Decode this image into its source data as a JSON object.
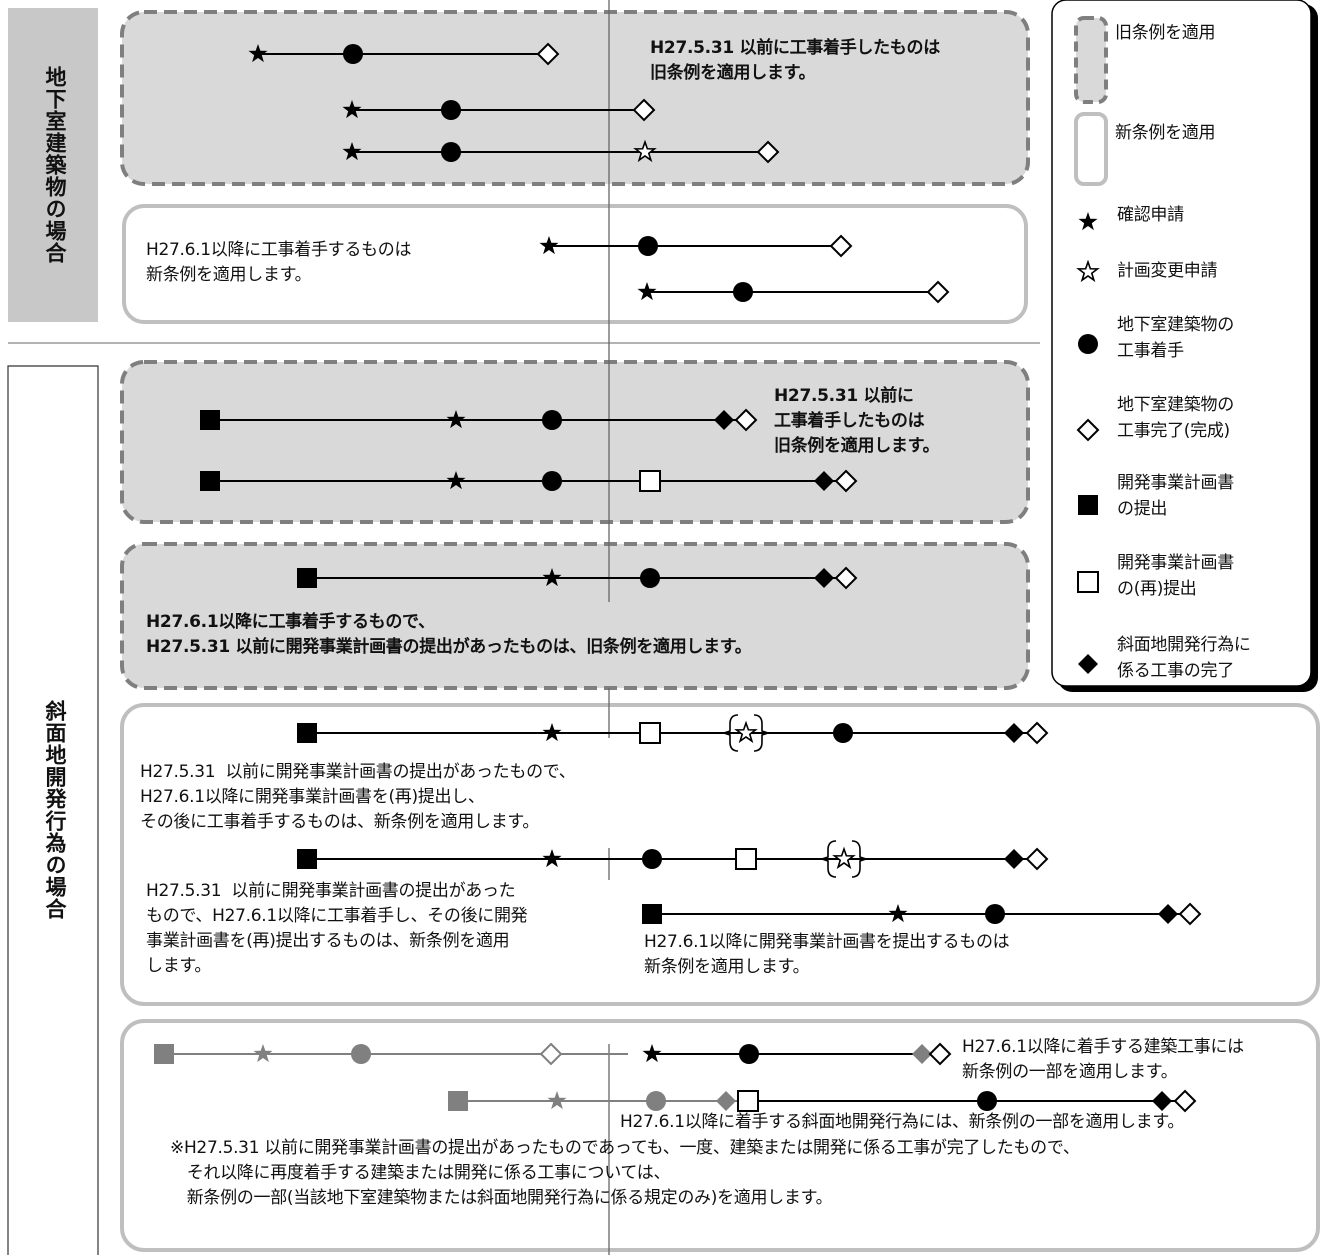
{
  "sections": {
    "underground": "地下室建築物の場合",
    "slope": "斜面地開発行為の場合"
  },
  "texts": {
    "u1": "H27.5.31 以前に工事着手したものは\n旧条例を適用します。",
    "u2": "H27.6.1以降に工事着手するものは\n新条例を適用します。",
    "s1": "H27.5.31 以前に\n工事着手したものは\n旧条例を適用します。",
    "s2": "H27.6.1以降に工事着手するもので、\nH27.5.31 以前に開発事業計画書の提出があったものは、旧条例を適用します。",
    "s3": "H27.5.31  以前に開発事業計画書の提出があったもので、\nH27.6.1以降に開発事業計画書を(再)提出し、\nその後に工事着手するものは、新条例を適用します。",
    "s4": "H27.5.31  以前に開発事業計画書の提出があった\nもので、H27.6.1以降に工事着手し、その後に開発\n事業計画書を(再)提出するものは、新条例を適用\nします。",
    "s5": "H27.6.1以降に開発事業計画書を提出するものは\n新条例を適用します。",
    "b1": "H27.6.1以降に着手する建築工事には\n新条例の一部を適用します。",
    "b2": "H27.6.1以降に着手する斜面地開発行為には、新条例の一部を適用します。",
    "note": "※H27.5.31 以前に開発事業計画書の提出があったものであっても、一度、建築または開発に係る工事が完了したもので、\n　それ以降に再度着手する建築または開発に係る工事については、\n　新条例の一部(当該地下室建築物または斜面地開発行為に係る規定のみ)を適用します。"
  },
  "legend": {
    "old": "旧条例を適用",
    "new": "新条例を適用",
    "confirm": "確認申請",
    "plan_change": "計画変更申請",
    "start": "地下室建築物の\n工事着手",
    "complete": "地下室建築物の\n工事完了(完成)",
    "submit": "開発事業計画書\nの提出",
    "resubmit": "開発事業計画書\nの(再)提出",
    "slope_complete": "斜面地開発行為に\n係る工事の完了"
  },
  "colors": {
    "old_fill": "#d9d9d9",
    "border_gray": "#7f7f7f",
    "light_border": "#bfbfbf",
    "line": "#000000",
    "faded": "#808080"
  }
}
